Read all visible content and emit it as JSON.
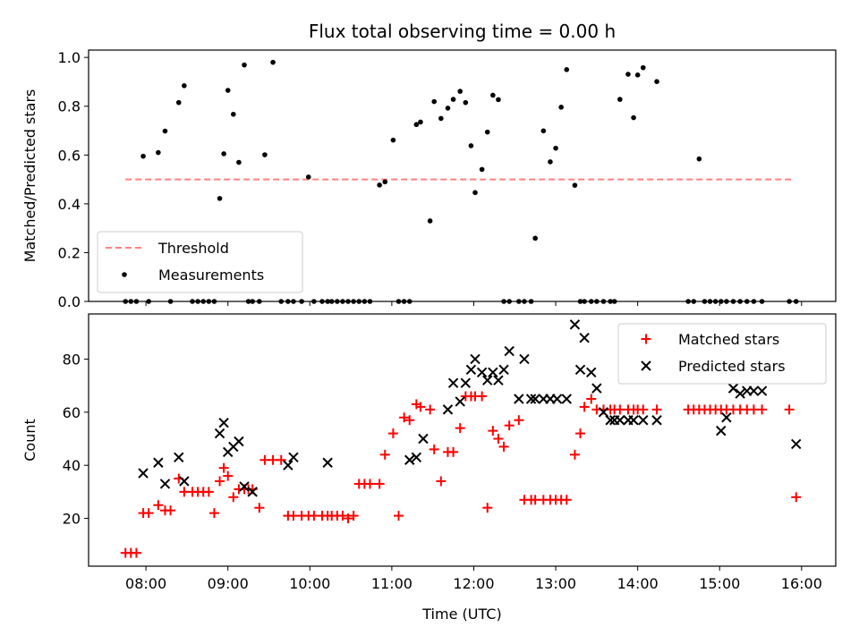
{
  "figure": {
    "title": "Flux total observing time = 0.00 h"
  },
  "chart_data": [
    {
      "type": "scatter",
      "title": "Flux total observing time = 0.00 h",
      "xlabel": "",
      "ylabel": "Matched/Predicted stars",
      "xlim": [
        "07:18",
        "16:25"
      ],
      "ylim": [
        0,
        1.03
      ],
      "x_ticks": [
        "08:00",
        "09:00",
        "10:00",
        "11:00",
        "12:00",
        "13:00",
        "14:00",
        "15:00",
        "16:00"
      ],
      "y_ticks": [
        "0.0",
        "0.2",
        "0.4",
        "0.6",
        "0.8",
        "1.0"
      ],
      "legend": {
        "position": "lower-left",
        "entries": [
          "Threshold",
          "Measurements"
        ]
      },
      "grid": false,
      "colors": {
        "threshold": "#ff8080",
        "measurements": "#000000"
      },
      "threshold": {
        "name": "Threshold",
        "y": 0.5,
        "x_range": [
          "07:45",
          "15:55"
        ]
      },
      "series": [
        {
          "name": "Measurements",
          "x": [
            "07:45",
            "07:49",
            "07:53",
            "07:58",
            "08:02",
            "08:09",
            "08:14",
            "08:18",
            "08:24",
            "08:28",
            "08:34",
            "08:38",
            "08:42",
            "08:46",
            "08:50",
            "08:54",
            "08:57",
            "09:00",
            "09:04",
            "09:08",
            "09:12",
            "09:15",
            "09:18",
            "09:23",
            "09:27",
            "09:33",
            "09:39",
            "09:44",
            "09:48",
            "09:54",
            "09:59",
            "10:03",
            "10:09",
            "10:13",
            "10:16",
            "10:20",
            "10:24",
            "10:28",
            "10:32",
            "10:36",
            "10:40",
            "10:44",
            "10:51",
            "10:55",
            "11:01",
            "11:05",
            "11:09",
            "11:13",
            "11:18",
            "11:21",
            "11:28",
            "11:31",
            "11:36",
            "11:41",
            "11:45",
            "11:50",
            "11:54",
            "11:58",
            "12:01",
            "12:06",
            "12:10",
            "12:14",
            "12:18",
            "12:22",
            "12:26",
            "12:33",
            "12:37",
            "12:42",
            "12:45",
            "12:51",
            "12:56",
            "13:00",
            "13:04",
            "13:08",
            "13:14",
            "13:18",
            "13:21",
            "13:26",
            "13:30",
            "13:35",
            "13:40",
            "13:43",
            "13:47",
            "13:53",
            "13:57",
            "14:00",
            "14:04",
            "14:14",
            "14:37",
            "14:41",
            "14:45",
            "14:49",
            "14:53",
            "14:57",
            "15:01",
            "15:05",
            "15:10",
            "15:15",
            "15:20",
            "15:25",
            "15:31",
            "15:51",
            "15:56"
          ],
          "y": [
            0,
            0,
            0,
            0.595,
            0,
            0.61,
            0.698,
            0,
            0.815,
            0.884,
            0,
            0,
            0,
            0,
            0,
            0.422,
            0.605,
            0.865,
            0.767,
            0.57,
            0.969,
            0,
            0,
            0,
            0.601,
            0.98,
            0,
            0,
            0,
            0,
            0.51,
            0,
            0,
            0,
            0,
            0,
            0,
            0,
            0,
            0,
            0,
            0,
            0.477,
            0.49,
            0.661,
            0,
            0,
            0,
            0.725,
            0.735,
            0.33,
            0.819,
            0.75,
            0.792,
            0.828,
            0.861,
            0.815,
            0.638,
            0.446,
            0.541,
            0.694,
            0.845,
            0.827,
            0,
            0,
            0,
            0,
            0,
            0.259,
            0.699,
            0.572,
            0.628,
            0.796,
            0.95,
            0.476,
            0,
            0,
            0,
            0,
            0,
            0,
            0,
            0.828,
            0.931,
            0.753,
            0.928,
            0.958,
            0.901,
            0,
            0,
            0.584,
            0,
            0,
            0,
            0,
            0,
            0,
            0,
            0,
            0,
            0,
            0,
            0
          ]
        }
      ]
    },
    {
      "type": "scatter",
      "title": "",
      "xlabel": "Time (UTC)",
      "ylabel": "Count",
      "xlim": [
        "07:18",
        "16:25"
      ],
      "ylim": [
        2,
        97
      ],
      "x_ticks": [
        "08:00",
        "09:00",
        "10:00",
        "11:00",
        "12:00",
        "13:00",
        "14:00",
        "15:00",
        "16:00"
      ],
      "y_ticks": [
        "20",
        "40",
        "60",
        "80"
      ],
      "legend": {
        "position": "top-right",
        "entries": [
          "Matched stars",
          "Predicted stars"
        ]
      },
      "grid": false,
      "colors": {
        "matched": "#ff0000",
        "predicted": "#000000"
      },
      "series": [
        {
          "name": "Matched stars",
          "marker": "plus",
          "x": [
            "07:45",
            "07:49",
            "07:53",
            "07:58",
            "08:02",
            "08:09",
            "08:14",
            "08:18",
            "08:24",
            "08:28",
            "08:34",
            "08:38",
            "08:42",
            "08:46",
            "08:50",
            "08:54",
            "08:57",
            "09:00",
            "09:04",
            "09:08",
            "09:12",
            "09:15",
            "09:18",
            "09:23",
            "09:27",
            "09:33",
            "09:39",
            "09:44",
            "09:48",
            "09:54",
            "09:59",
            "10:03",
            "10:09",
            "10:13",
            "10:16",
            "10:20",
            "10:24",
            "10:28",
            "10:32",
            "10:36",
            "10:40",
            "10:44",
            "10:51",
            "10:55",
            "11:01",
            "11:05",
            "11:09",
            "11:13",
            "11:18",
            "11:21",
            "11:28",
            "11:31",
            "11:36",
            "11:41",
            "11:45",
            "11:50",
            "11:54",
            "11:58",
            "12:01",
            "12:06",
            "12:10",
            "12:14",
            "12:18",
            "12:22",
            "12:26",
            "12:33",
            "12:37",
            "12:42",
            "12:45",
            "12:51",
            "12:56",
            "13:00",
            "13:04",
            "13:08",
            "13:14",
            "13:18",
            "13:21",
            "13:26",
            "13:30",
            "13:35",
            "13:40",
            "13:43",
            "13:47",
            "13:53",
            "13:57",
            "14:00",
            "14:04",
            "14:14",
            "14:37",
            "14:41",
            "14:45",
            "14:49",
            "14:53",
            "14:57",
            "15:01",
            "15:05",
            "15:10",
            "15:15",
            "15:20",
            "15:25",
            "15:31",
            "15:51",
            "15:56"
          ],
          "y": [
            7,
            7,
            7,
            22,
            22,
            25,
            23,
            23,
            35,
            30,
            30,
            30,
            30,
            30,
            22,
            34,
            39,
            36,
            28,
            31,
            31,
            31,
            31,
            24,
            42,
            42,
            42,
            21,
            21,
            21,
            21,
            21,
            21,
            21,
            21,
            21,
            21,
            20,
            21,
            33,
            33,
            33,
            33,
            44,
            52,
            21,
            58,
            57,
            63,
            62,
            61,
            46,
            34,
            45,
            45,
            54,
            66,
            66,
            66,
            66,
            24,
            53,
            50,
            47,
            55,
            57,
            27,
            27,
            27,
            27,
            27,
            27,
            27,
            27,
            44,
            52,
            62,
            65,
            61,
            61,
            61,
            61,
            61,
            61,
            61,
            61,
            61,
            61,
            61,
            61,
            61,
            61,
            61,
            61,
            61,
            61,
            61,
            61,
            61,
            61,
            61,
            61,
            28
          ]
        },
        {
          "name": "Predicted stars",
          "marker": "x",
          "x": [
            "07:58",
            "08:09",
            "08:14",
            "08:24",
            "08:28",
            "08:54",
            "08:57",
            "09:00",
            "09:04",
            "09:08",
            "09:12",
            "09:18",
            "09:44",
            "09:48",
            "10:13",
            "11:13",
            "11:18",
            "11:23",
            "11:41",
            "11:45",
            "11:50",
            "11:54",
            "11:58",
            "12:01",
            "12:06",
            "12:10",
            "12:14",
            "12:18",
            "12:22",
            "12:26",
            "12:33",
            "12:37",
            "12:42",
            "12:45",
            "12:51",
            "12:56",
            "13:01",
            "13:08",
            "13:14",
            "13:18",
            "13:21",
            "13:26",
            "13:30",
            "13:35",
            "13:40",
            "13:43",
            "13:47",
            "13:53",
            "13:57",
            "14:04",
            "14:14",
            "15:01",
            "15:05",
            "15:10",
            "15:15",
            "15:20",
            "15:25",
            "15:31",
            "15:56"
          ],
          "y": [
            37,
            41,
            33,
            43,
            34,
            52,
            56,
            45,
            47,
            49,
            32,
            30,
            40,
            43,
            41,
            42,
            43,
            50,
            61,
            71,
            64,
            71,
            76,
            80,
            75,
            72,
            75,
            72,
            76,
            83,
            65,
            80,
            65,
            65,
            65,
            65,
            65,
            65,
            93,
            76,
            88,
            75,
            69,
            60,
            57,
            57,
            57,
            57,
            57,
            57,
            57,
            53,
            58,
            69,
            67,
            68,
            68,
            68,
            48
          ]
        }
      ]
    }
  ]
}
